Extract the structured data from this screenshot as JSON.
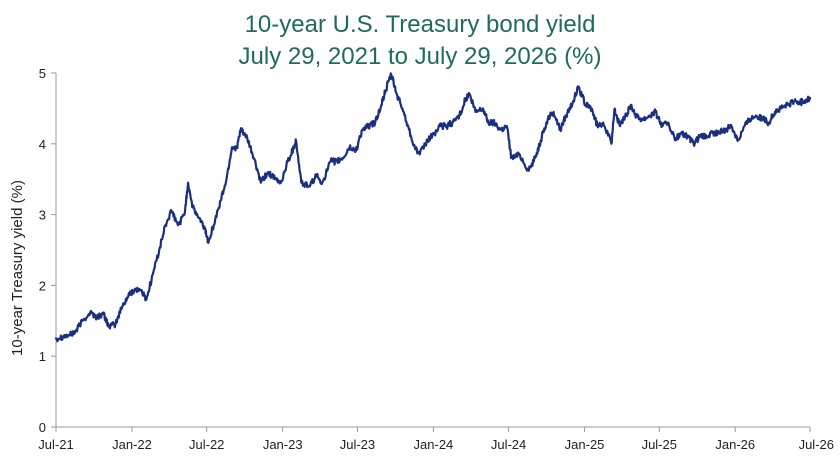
{
  "chart_data": {
    "type": "line",
    "title": "10-year U.S. Treasury bond yield",
    "subtitle": "July 29, 2021 to July 29, 2026  (%)",
    "xlabel": "",
    "ylabel": "10-year Treasury yield (%)",
    "ylim": [
      0,
      5
    ],
    "yticks": [
      0,
      1,
      2,
      3,
      4,
      5
    ],
    "xlim": [
      "2021-07-29",
      "2026-07-29"
    ],
    "xticks": [
      {
        "label": "Jul-21",
        "date": "2021-07-29"
      },
      {
        "label": "Jan-22",
        "date": "2022-01-29"
      },
      {
        "label": "Jul-22",
        "date": "2022-07-29"
      },
      {
        "label": "Jan-23",
        "date": "2023-01-29"
      },
      {
        "label": "Jul-23",
        "date": "2023-07-29"
      },
      {
        "label": "Jan-24",
        "date": "2024-01-29"
      },
      {
        "label": "Jul-24",
        "date": "2024-07-29"
      },
      {
        "label": "Jan-25",
        "date": "2025-01-29"
      },
      {
        "label": "Jul-25",
        "date": "2025-07-29"
      },
      {
        "label": "Jan-26",
        "date": "2026-01-29"
      },
      {
        "label": "Jul-26",
        "date": "2026-07-29"
      }
    ],
    "grid": false,
    "legend": false,
    "colors": {
      "line": "#1b2f80",
      "axis": "#9a9a9a",
      "title": "#1f6b5e"
    },
    "series": [
      {
        "x": [
          "2021-07-29",
          "2021-08-15",
          "2021-09-01",
          "2021-09-15",
          "2021-10-01",
          "2021-10-20",
          "2021-11-05",
          "2021-11-20",
          "2021-12-05",
          "2021-12-20",
          "2022-01-05",
          "2022-01-20",
          "2022-02-05",
          "2022-02-20",
          "2022-03-05",
          "2022-03-20",
          "2022-04-05",
          "2022-04-20",
          "2022-05-05",
          "2022-05-20",
          "2022-06-05",
          "2022-06-14",
          "2022-06-25",
          "2022-07-10",
          "2022-07-25",
          "2022-08-01",
          "2022-08-15",
          "2022-09-01",
          "2022-09-15",
          "2022-09-28",
          "2022-10-10",
          "2022-10-21",
          "2022-11-05",
          "2022-11-20",
          "2022-12-07",
          "2022-12-25",
          "2023-01-10",
          "2023-01-25",
          "2023-02-10",
          "2023-02-25",
          "2023-03-02",
          "2023-03-15",
          "2023-04-05",
          "2023-04-20",
          "2023-05-05",
          "2023-05-25",
          "2023-06-10",
          "2023-06-25",
          "2023-07-10",
          "2023-07-25",
          "2023-08-10",
          "2023-08-25",
          "2023-09-10",
          "2023-09-25",
          "2023-10-05",
          "2023-10-19",
          "2023-11-01",
          "2023-11-15",
          "2023-12-01",
          "2023-12-15",
          "2023-12-27",
          "2024-01-15",
          "2024-02-01",
          "2024-02-15",
          "2024-03-01",
          "2024-03-15",
          "2024-04-01",
          "2024-04-15",
          "2024-04-25",
          "2024-05-10",
          "2024-05-28",
          "2024-06-10",
          "2024-06-25",
          "2024-07-10",
          "2024-07-25",
          "2024-08-05",
          "2024-08-25",
          "2024-09-16",
          "2024-10-01",
          "2024-10-15",
          "2024-11-01",
          "2024-11-15",
          "2024-12-01",
          "2024-12-15",
          "2025-01-01",
          "2025-01-14",
          "2025-02-01",
          "2025-02-15",
          "2025-03-01",
          "2025-03-15",
          "2025-04-04",
          "2025-04-11",
          "2025-04-25",
          "2025-05-10",
          "2025-05-21",
          "2025-06-05",
          "2025-06-20",
          "2025-07-05",
          "2025-07-20",
          "2025-08-05",
          "2025-08-20",
          "2025-09-05",
          "2025-09-20",
          "2025-10-05",
          "2025-10-20",
          "2025-11-05",
          "2025-11-20",
          "2025-12-05",
          "2025-12-20",
          "2026-01-05",
          "2026-01-20",
          "2026-02-05",
          "2026-02-20",
          "2026-03-05",
          "2026-03-20",
          "2026-04-05",
          "2026-04-20",
          "2026-05-05",
          "2026-05-20",
          "2026-06-05",
          "2026-06-20",
          "2026-07-05",
          "2026-07-20",
          "2026-07-29"
        ],
        "y": [
          1.25,
          1.28,
          1.3,
          1.35,
          1.5,
          1.62,
          1.55,
          1.6,
          1.42,
          1.45,
          1.7,
          1.85,
          1.95,
          1.93,
          1.8,
          2.15,
          2.5,
          2.85,
          3.05,
          2.85,
          3.0,
          3.45,
          3.1,
          2.95,
          2.8,
          2.62,
          2.85,
          3.2,
          3.5,
          3.95,
          3.95,
          4.22,
          4.05,
          3.8,
          3.45,
          3.6,
          3.5,
          3.45,
          3.75,
          3.95,
          4.05,
          3.45,
          3.4,
          3.55,
          3.45,
          3.75,
          3.75,
          3.8,
          3.95,
          3.9,
          4.2,
          4.25,
          4.3,
          4.55,
          4.75,
          4.98,
          4.7,
          4.5,
          4.2,
          3.95,
          3.85,
          4.05,
          4.15,
          4.25,
          4.25,
          4.3,
          4.4,
          4.62,
          4.7,
          4.45,
          4.5,
          4.3,
          4.3,
          4.2,
          4.25,
          3.8,
          3.85,
          3.62,
          3.8,
          4.05,
          4.35,
          4.45,
          4.2,
          4.4,
          4.6,
          4.79,
          4.55,
          4.5,
          4.25,
          4.3,
          4.0,
          4.48,
          4.25,
          4.4,
          4.55,
          4.38,
          4.35,
          4.4,
          4.45,
          4.25,
          4.3,
          4.05,
          4.15,
          4.1,
          4.0,
          4.1,
          4.1,
          4.15,
          4.15,
          4.2,
          4.25,
          4.05,
          4.25,
          4.35,
          4.4,
          4.35,
          4.3,
          4.45,
          4.5,
          4.55,
          4.6,
          4.58,
          4.62,
          4.65
        ]
      }
    ]
  }
}
